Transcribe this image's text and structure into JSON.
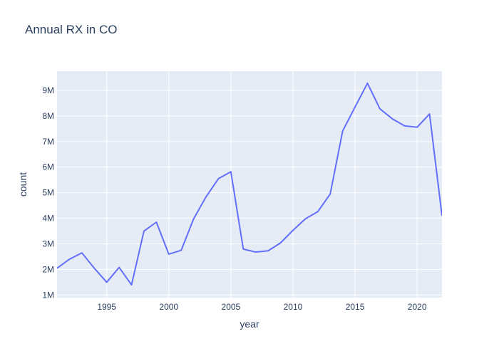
{
  "chart_data": {
    "type": "line",
    "title": "Annual RX in CO",
    "xlabel": "year",
    "ylabel": "count",
    "xlim": [
      1991,
      2022
    ],
    "ylim": [
      900000,
      9750000
    ],
    "grid": true,
    "plot_background": "#e5ecf6",
    "line_color": "#636efa",
    "x_ticks": [
      1995,
      2000,
      2005,
      2010,
      2015,
      2020
    ],
    "x_tick_labels": [
      "1995",
      "2000",
      "2005",
      "2010",
      "2015",
      "2020"
    ],
    "y_ticks": [
      1000000,
      2000000,
      3000000,
      4000000,
      5000000,
      6000000,
      7000000,
      8000000,
      9000000
    ],
    "y_tick_labels": [
      "1M",
      "2M",
      "3M",
      "4M",
      "5M",
      "6M",
      "7M",
      "8M",
      "9M"
    ],
    "series": [
      {
        "x": [
          1991,
          1992,
          1993,
          1994,
          1995,
          1996,
          1997,
          1998,
          1999,
          2000,
          2001,
          2002,
          2003,
          2004,
          2005,
          2006,
          2007,
          2008,
          2009,
          2010,
          2011,
          2012,
          2013,
          2014,
          2015,
          2016,
          2017,
          2018,
          2019,
          2020,
          2021,
          2022
        ],
        "y": [
          2050000,
          2400000,
          2650000,
          2050000,
          1500000,
          2080000,
          1400000,
          3500000,
          3850000,
          2600000,
          2750000,
          3980000,
          4840000,
          5550000,
          5820000,
          2800000,
          2680000,
          2730000,
          3040000,
          3530000,
          3980000,
          4260000,
          4950000,
          7410000,
          8350000,
          9280000,
          8280000,
          7890000,
          7610000,
          7560000,
          8080000,
          4100000
        ]
      }
    ]
  }
}
